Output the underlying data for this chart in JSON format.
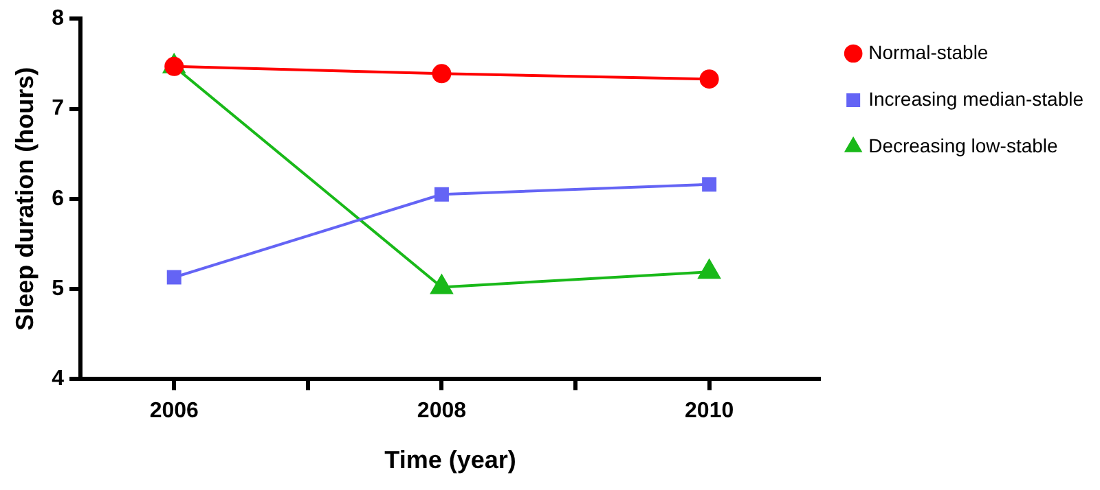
{
  "chart_data": {
    "type": "line",
    "xlabel": "Time (year)",
    "ylabel": "Sleep duration (hours)",
    "x": [
      2006,
      2008,
      2010
    ],
    "series": [
      {
        "name": "Normal-stable",
        "color": "#ff0000",
        "marker": "circle",
        "values": [
          7.47,
          7.39,
          7.33
        ]
      },
      {
        "name": "Increasing median-stable",
        "color": "#6464f5",
        "marker": "square",
        "values": [
          5.13,
          6.05,
          6.16
        ]
      },
      {
        "name": "Decreasing low-stable",
        "color": "#19b919",
        "marker": "triangle",
        "values": [
          7.47,
          5.02,
          5.19
        ]
      }
    ],
    "xlim": [
      2005.3,
      2010.83
    ],
    "xticks": [
      2006,
      {
        "value": 2007,
        "label": null
      },
      2008,
      {
        "value": 2009,
        "label": null
      },
      2010
    ],
    "ylim": [
      4,
      8
    ],
    "yticks": [
      4,
      5,
      6,
      7,
      8
    ],
    "grid": false,
    "legend": "top right"
  }
}
